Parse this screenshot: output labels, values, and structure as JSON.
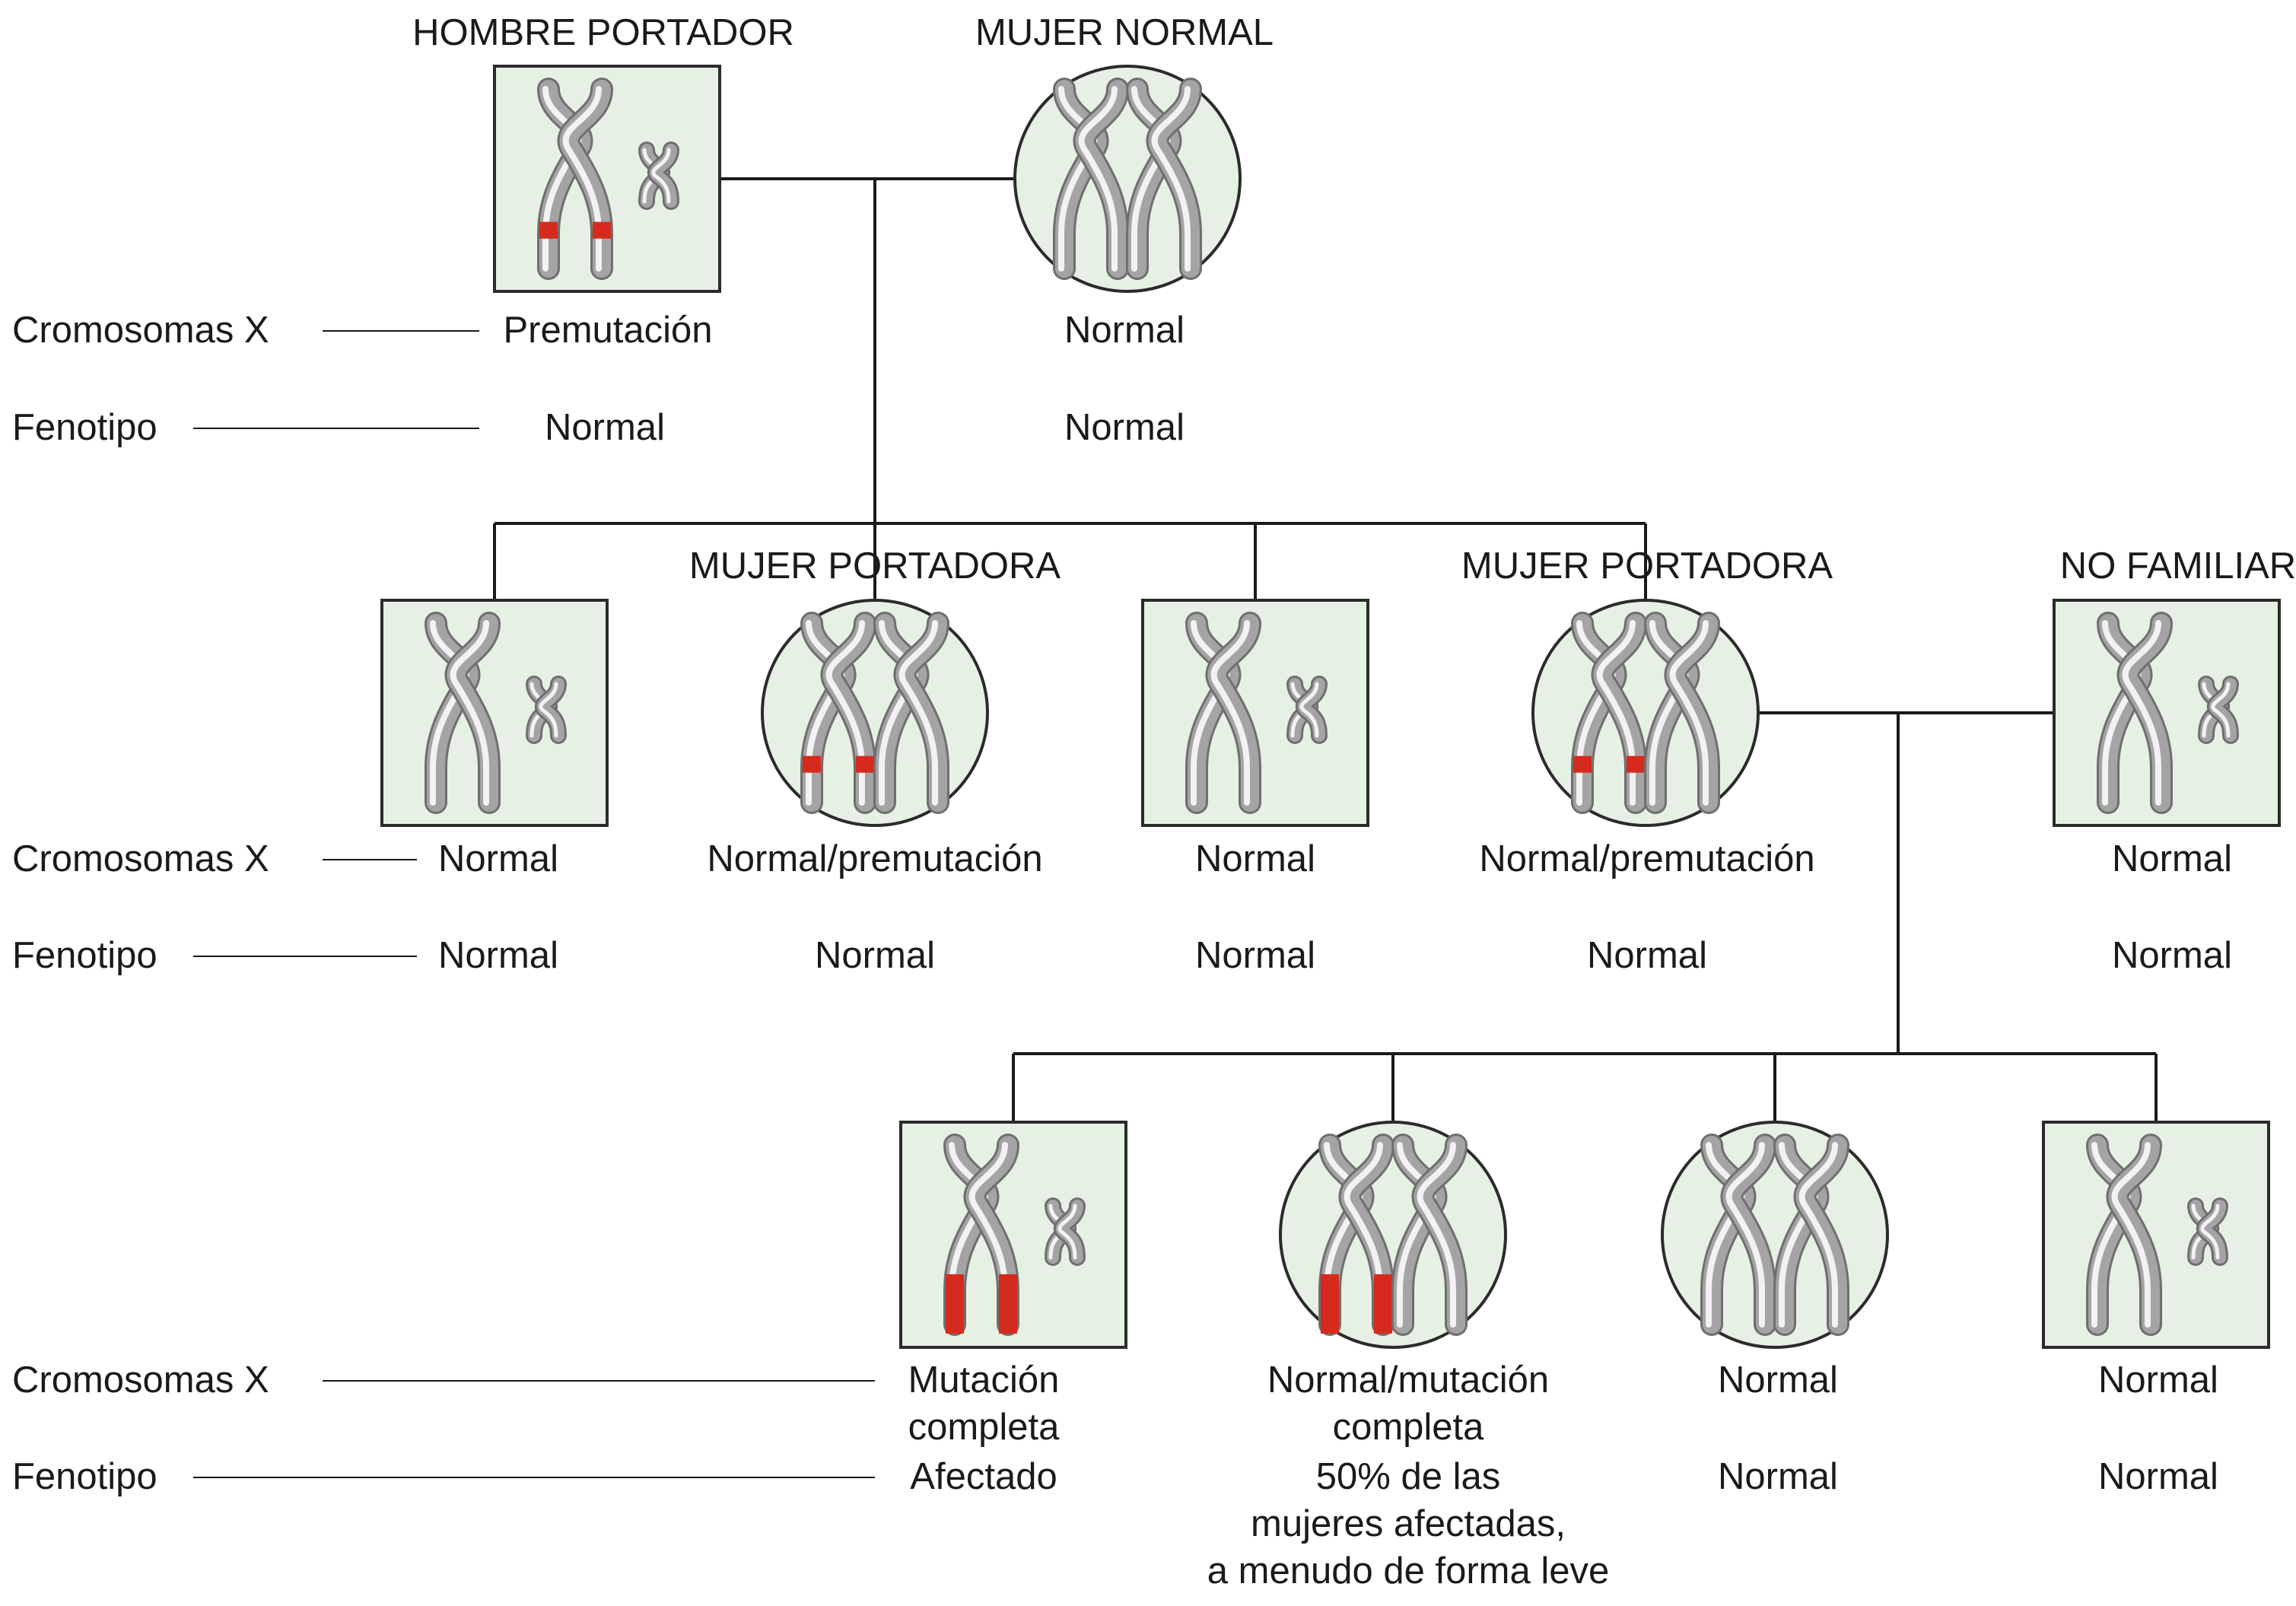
{
  "row_labels": {
    "chromosomes": "Cromosomas X",
    "phenotype": "Fenotipo"
  },
  "colors": {
    "node_fill": "#e7f0e4",
    "node_stroke": "#2b2b2b",
    "chromosome": "#a4a4a4",
    "chromosome_highlight": "#f2f2f2",
    "premutation": "#d62a1e",
    "line": "#1a1a1a"
  },
  "generation1": {
    "father": {
      "title": "HOMBRE PORTADOR",
      "sex": "male",
      "chromosome_state": "premutation",
      "chromosomes": "Premutación",
      "phenotype": "Normal"
    },
    "mother": {
      "title": "MUJER NORMAL",
      "sex": "female",
      "chromosome_state": "normal",
      "chromosomes": "Normal",
      "phenotype": "Normal"
    }
  },
  "generation2": [
    {
      "title": "",
      "sex": "male",
      "chromosome_state": "normal",
      "chromosomes": "Normal",
      "phenotype": "Normal"
    },
    {
      "title": "MUJER PORTADORA",
      "sex": "female",
      "chromosome_state": "premutation",
      "chromosomes": "Normal/premutación",
      "phenotype": "Normal"
    },
    {
      "title": "",
      "sex": "male",
      "chromosome_state": "normal",
      "chromosomes": "Normal",
      "phenotype": "Normal"
    },
    {
      "title": "MUJER PORTADORA",
      "sex": "female",
      "chromosome_state": "premutation",
      "chromosomes": "Normal/premutación",
      "phenotype": "Normal"
    },
    {
      "title": "NO FAMILIAR",
      "sex": "male",
      "chromosome_state": "normal",
      "chromosomes": "Normal",
      "phenotype": "Normal"
    }
  ],
  "generation3": [
    {
      "sex": "male",
      "chromosome_state": "full_mutation",
      "chromosomes_lines": [
        "Mutación",
        "completa"
      ],
      "phenotype_lines": [
        "Afectado"
      ]
    },
    {
      "sex": "female",
      "chromosome_state": "full_mutation",
      "chromosomes_lines": [
        "Normal/mutación",
        "completa"
      ],
      "phenotype_lines": [
        "50% de las",
        "mujeres afectadas,",
        "a menudo de forma leve"
      ]
    },
    {
      "sex": "female",
      "chromosome_state": "normal",
      "chromosomes_lines": [
        "Normal"
      ],
      "phenotype_lines": [
        "Normal"
      ]
    },
    {
      "sex": "male",
      "chromosome_state": "normal",
      "chromosomes_lines": [
        "Normal"
      ],
      "phenotype_lines": [
        "Normal"
      ]
    }
  ]
}
